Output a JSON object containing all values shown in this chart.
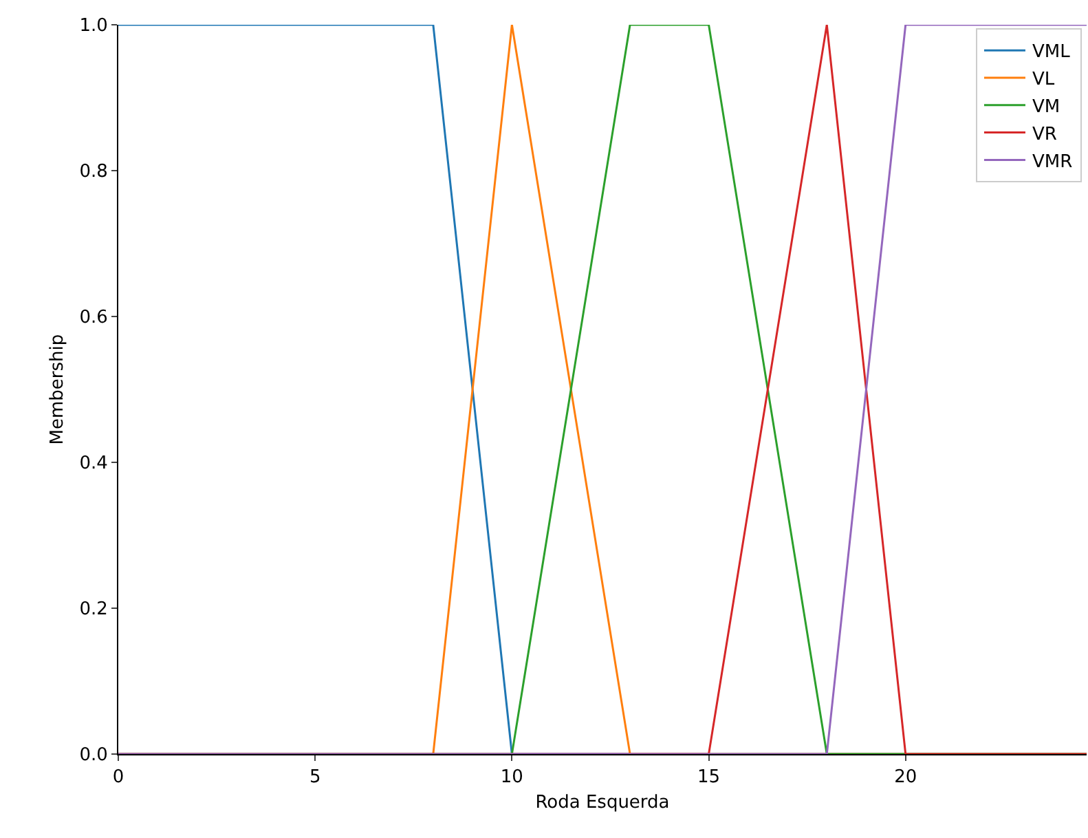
{
  "chart_data": {
    "type": "line",
    "xlabel": "Roda Esquerda",
    "ylabel": "Membership",
    "xlim": [
      0,
      24.6
    ],
    "ylim": [
      0,
      1
    ],
    "xticks": [
      0,
      5,
      10,
      15,
      20
    ],
    "yticks": [
      {
        "value": 0,
        "label": "0.0"
      },
      0.2,
      0.4,
      0.6,
      0.8,
      {
        "value": 1,
        "label": "1.0"
      }
    ],
    "grid": false,
    "legend": "top right",
    "marker": "none",
    "line_style": "solid",
    "series": [
      {
        "name": "VML",
        "color": "#1f77b4",
        "x": [
          0,
          8,
          10,
          24.6
        ],
        "values": [
          1,
          1,
          0,
          0
        ]
      },
      {
        "name": "VL",
        "color": "#ff7f0e",
        "x": [
          0,
          8,
          10,
          13,
          24.6
        ],
        "values": [
          0,
          0,
          1,
          0,
          0
        ]
      },
      {
        "name": "VM",
        "color": "#2ca02c",
        "x": [
          0,
          10,
          13,
          15,
          18,
          24.6
        ],
        "values": [
          0,
          0,
          1,
          1,
          0,
          0
        ]
      },
      {
        "name": "VR",
        "color": "#d62728",
        "x": [
          0,
          15,
          18,
          20,
          24.6
        ],
        "values": [
          0,
          0,
          1,
          0,
          0
        ]
      },
      {
        "name": "VMR",
        "color": "#9467bd",
        "x": [
          0,
          18,
          20,
          24.6
        ],
        "values": [
          0,
          0,
          1,
          1
        ]
      }
    ]
  }
}
